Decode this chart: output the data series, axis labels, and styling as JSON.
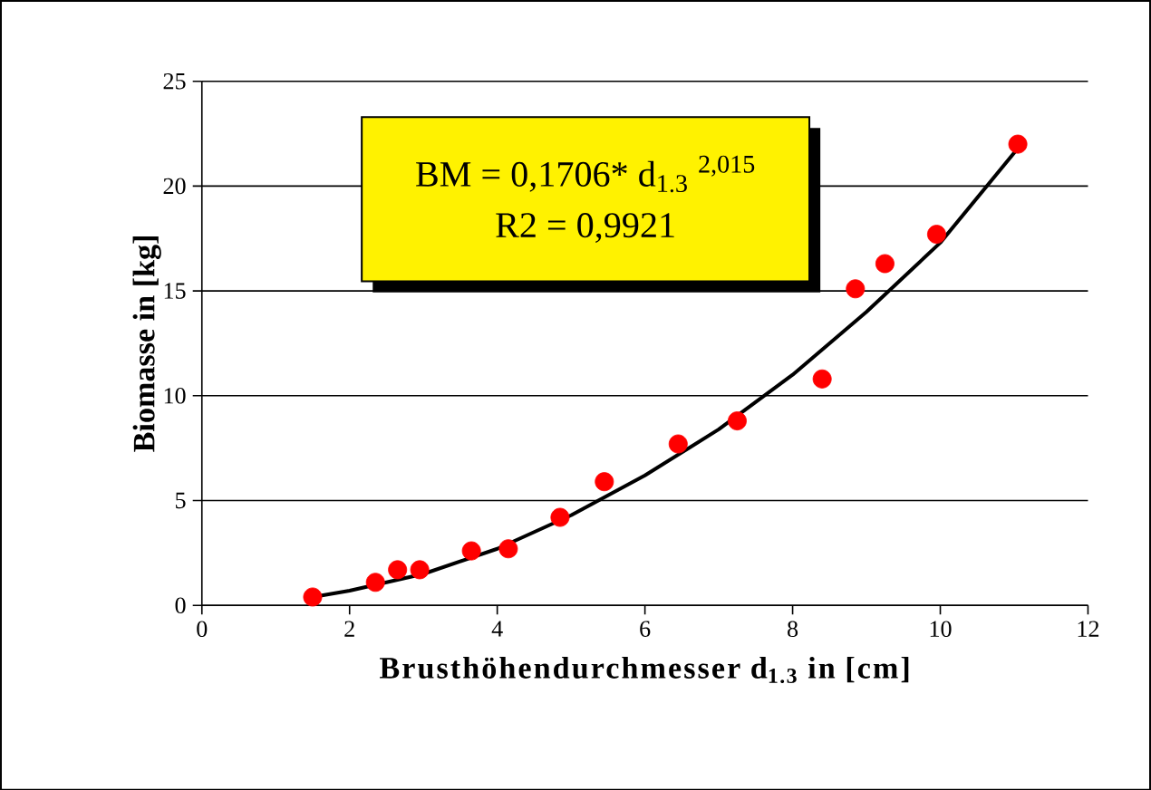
{
  "chart_data": {
    "type": "scatter",
    "xlabel": "Brusthöhendurchmesser d$_{1.3}$ in [cm]",
    "ylabel": "Biomasse in [kg]",
    "annotations": [
      "BM = 0,1706* d$_{1.3}$ $^{2,015}$",
      "R2 = 0,9921"
    ],
    "xlim": [
      0,
      12
    ],
    "ylim": [
      0,
      25
    ],
    "xticks": [
      0,
      2,
      4,
      6,
      8,
      10,
      12
    ],
    "yticks": [
      0,
      5,
      10,
      15,
      20,
      25
    ],
    "grid": "y",
    "series": [
      {
        "color": "#ff0000",
        "marker": "circle",
        "x": [
          1.5,
          2.35,
          2.65,
          2.95,
          3.65,
          4.15,
          4.85,
          5.45,
          6.45,
          7.25,
          8.4,
          8.85,
          9.25,
          9.95,
          11.05
        ],
        "values": [
          0.4,
          1.1,
          1.7,
          1.7,
          2.6,
          2.7,
          4.2,
          5.9,
          7.7,
          8.8,
          10.8,
          15.1,
          16.3,
          17.7,
          22.0
        ]
      },
      {
        "type": "line",
        "color": "#000000",
        "marker": "none",
        "line_style": "solid",
        "x": [
          1.5,
          2,
          3,
          4,
          5,
          6,
          7,
          8,
          9,
          10,
          11.05
        ],
        "values": [
          0.4,
          0.7,
          1.5,
          2.7,
          4.3,
          6.2,
          8.4,
          11.0,
          14.0,
          17.3,
          21.8
        ]
      }
    ]
  }
}
